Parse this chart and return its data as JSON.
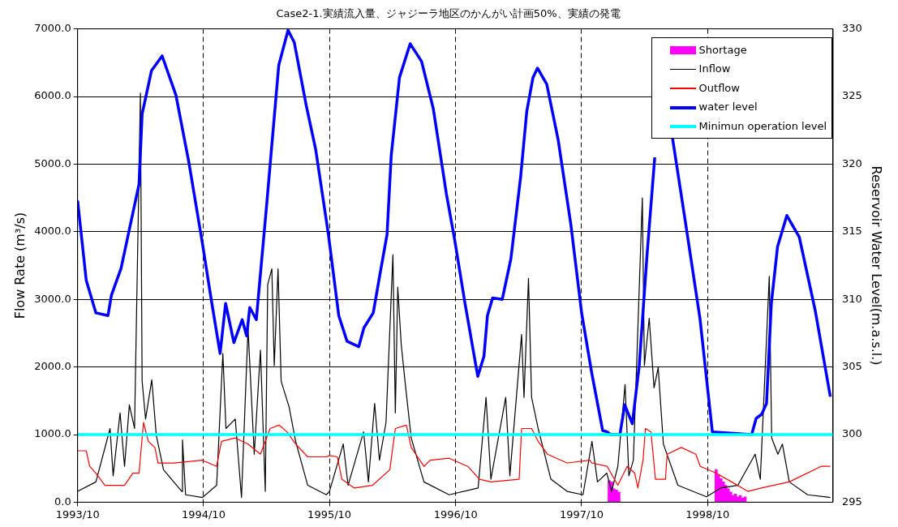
{
  "chart_data": {
    "type": "line",
    "title": "Case2-1.実績流入量、ジャジーラ地区のかんがい計画50%、実績の発電",
    "ylabel": "Flow Rate (m³/s)",
    "y2label": "Reservoir Water Level(m.a.s.l.)",
    "xlim": [
      "1993-10-01",
      "1999-09-30"
    ],
    "xticks": [
      {
        "value": "1993-10",
        "label": "1993/10"
      },
      {
        "value": "1994-10",
        "label": "1994/10"
      },
      {
        "value": "1995-10",
        "label": "1995/10"
      },
      {
        "value": "1996-10",
        "label": "1996/10"
      },
      {
        "value": "1997-10",
        "label": "1997/10"
      },
      {
        "value": "1998-10",
        "label": "1998/10"
      }
    ],
    "ylim": [
      0,
      7000
    ],
    "yticks": [
      {
        "value": 0,
        "label": "0.0"
      },
      {
        "value": 1000,
        "label": "1000.0"
      },
      {
        "value": 2000,
        "label": "2000.0"
      },
      {
        "value": 3000,
        "label": "3000.0"
      },
      {
        "value": 4000,
        "label": "4000.0"
      },
      {
        "value": 5000,
        "label": "5000.0"
      },
      {
        "value": 6000,
        "label": "6000.0"
      },
      {
        "value": 7000,
        "label": "7000.0"
      }
    ],
    "y2lim": [
      295,
      330
    ],
    "y2ticks": [
      295,
      300,
      305,
      310,
      315,
      320,
      325,
      330
    ],
    "grid": true,
    "legend": "top right",
    "series": [
      {
        "name": "Shortage",
        "type": "bar",
        "color": "#ff00ff",
        "x": [
          "1997-12-20",
          "1997-12-27",
          "1998-01-03",
          "1998-01-10",
          "1998-01-17",
          "1998-10-26",
          "1998-11-02",
          "1998-11-09",
          "1998-11-16",
          "1998-11-23",
          "1998-11-30",
          "1998-12-07",
          "1998-12-14",
          "1998-12-21",
          "1998-12-28",
          "1999-01-04",
          "1999-01-11",
          "1999-01-18"
        ],
        "values": [
          320,
          300,
          200,
          180,
          150,
          480,
          400,
          350,
          300,
          250,
          200,
          150,
          100,
          120,
          80,
          100,
          60,
          80
        ]
      },
      {
        "name": "Inflow",
        "color": "#000000",
        "x": [
          "1993-10-01",
          "1993-11-23",
          "1994-01-03",
          "1994-01-12",
          "1994-02-01",
          "1994-02-14",
          "1994-02-28",
          "1994-03-15",
          "1994-04-01",
          "1994-04-06",
          "1994-04-16",
          "1994-05-04",
          "1994-05-17",
          "1994-06-07",
          "1994-07-30",
          "1994-08-01",
          "1994-08-10",
          "1994-09-28",
          "1994-11-08",
          "1994-11-26",
          "1994-12-05",
          "1995-01-01",
          "1995-01-19",
          "1995-02-07",
          "1995-02-25",
          "1995-03-15",
          "1995-03-29",
          "1995-04-05",
          "1995-04-17",
          "1995-04-24",
          "1995-05-05",
          "1995-05-14",
          "1995-06-06",
          "1995-06-25",
          "1995-07-30",
          "1995-09-22",
          "1995-10-01",
          "1995-11-10",
          "1995-11-24",
          "1996-01-08",
          "1996-01-22",
          "1996-02-09",
          "1996-02-23",
          "1996-03-13",
          "1996-04-02",
          "1996-04-09",
          "1996-04-16",
          "1996-04-26",
          "1996-05-07",
          "1996-05-25",
          "1996-07-01",
          "1996-09-12",
          "1996-12-05",
          "1996-12-28",
          "1997-01-11",
          "1997-02-23",
          "1997-03-07",
          "1997-04-10",
          "1997-04-17",
          "1997-04-30",
          "1997-05-09",
          "1997-05-28",
          "1997-07-04",
          "1997-08-20",
          "1997-10-05",
          "1997-10-31",
          "1997-11-16",
          "1997-12-13",
          "1997-12-27",
          "1998-01-14",
          "1998-02-04",
          "1998-02-15",
          "1998-02-28",
          "1998-03-26",
          "1998-04-01",
          "1998-04-15",
          "1998-04-29",
          "1998-05-11",
          "1998-05-26",
          "1998-07-07",
          "1998-09-28",
          "1998-11-08",
          "1998-12-28",
          "1999-02-16",
          "1999-03-03",
          "1999-03-29",
          "1999-04-05",
          "1999-04-23",
          "1999-05-06",
          "1999-05-26",
          "1999-07-18",
          "1999-09-22"
        ],
        "values": [
          160,
          300,
          1090,
          390,
          1320,
          530,
          1440,
          1090,
          6050,
          1790,
          1230,
          1810,
          990,
          480,
          160,
          920,
          110,
          70,
          250,
          2200,
          1090,
          1230,
          70,
          2570,
          710,
          2250,
          160,
          3220,
          3450,
          2020,
          3450,
          1790,
          1410,
          900,
          250,
          110,
          160,
          860,
          250,
          1040,
          300,
          1460,
          620,
          1180,
          3660,
          1320,
          3180,
          2340,
          1790,
          950,
          300,
          110,
          210,
          1550,
          340,
          1550,
          390,
          2480,
          1550,
          3310,
          1550,
          1090,
          340,
          160,
          110,
          900,
          300,
          430,
          160,
          530,
          1740,
          390,
          620,
          4500,
          2020,
          2720,
          1690,
          1990,
          860,
          250,
          80,
          210,
          250,
          710,
          340,
          3340,
          950,
          710,
          860,
          300,
          110,
          70
        ]
      },
      {
        "name": "Outflow",
        "color": "#ff0000",
        "x": [
          "1993-10-01",
          "1993-10-26",
          "1993-11-05",
          "1993-11-23",
          "1993-12-19",
          "1994-02-14",
          "1994-03-10",
          "1994-03-28",
          "1994-04-10",
          "1994-04-24",
          "1994-05-13",
          "1994-05-22",
          "1994-07-06",
          "1994-09-27",
          "1994-11-08",
          "1994-11-22",
          "1995-01-01",
          "1995-02-07",
          "1995-03-15",
          "1995-04-12",
          "1995-05-08",
          "1995-05-31",
          "1995-06-25",
          "1995-07-30",
          "1995-09-22",
          "1995-10-01",
          "1995-10-24",
          "1995-11-06",
          "1995-12-12",
          "1996-02-03",
          "1996-03-24",
          "1996-04-09",
          "1996-05-11",
          "1996-05-25",
          "1996-07-01",
          "1996-07-19",
          "1996-09-12",
          "1996-11-05",
          "1996-12-09",
          "1997-01-11",
          "1997-04-03",
          "1997-04-10",
          "1997-05-09",
          "1997-05-28",
          "1997-06-24",
          "1997-08-20",
          "1997-10-25",
          "1997-10-30",
          "1997-12-14",
          "1998-01-14",
          "1998-02-10",
          "1998-03-04",
          "1998-03-13",
          "1998-03-28",
          "1998-04-04",
          "1998-04-20",
          "1998-05-03",
          "1998-06-01",
          "1998-06-06",
          "1998-07-17",
          "1998-08-28",
          "1998-09-10",
          "1998-10-26",
          "1998-12-10",
          "1999-01-26",
          "1999-03-06",
          "1999-05-26",
          "1999-08-26",
          "1999-09-22"
        ],
        "values": [
          760,
          760,
          530,
          430,
          250,
          250,
          430,
          430,
          1180,
          900,
          810,
          580,
          580,
          620,
          530,
          900,
          950,
          860,
          710,
          1090,
          1140,
          1040,
          860,
          670,
          670,
          690,
          670,
          340,
          210,
          250,
          480,
          1090,
          1140,
          810,
          530,
          620,
          650,
          530,
          340,
          300,
          340,
          1090,
          1090,
          900,
          710,
          580,
          620,
          580,
          530,
          250,
          530,
          430,
          210,
          620,
          1090,
          1040,
          340,
          340,
          710,
          810,
          710,
          530,
          430,
          300,
          160,
          210,
          300,
          530,
          530
        ]
      },
      {
        "name": "water level",
        "color": "#0000ff",
        "axis": "y2",
        "x": [
          "1993-10-01",
          "1993-10-26",
          "1993-11-23",
          "1993-12-28",
          "1994-01-07",
          "1994-02-04",
          "1994-03-01",
          "1994-03-28",
          "1994-04-06",
          "1994-05-03",
          "1994-06-03",
          "1994-07-13",
          "1994-08-19",
          "1994-09-28",
          "1994-10-22",
          "1994-11-18",
          "1994-12-04",
          "1994-12-28",
          "1995-01-21",
          "1995-02-03",
          "1995-02-12",
          "1995-03-03",
          "1995-04-01",
          "1995-05-07",
          "1995-06-03",
          "1995-06-21",
          "1995-07-26",
          "1995-08-22",
          "1995-09-28",
          "1995-10-28",
          "1995-11-21",
          "1995-12-25",
          "1996-01-09",
          "1996-02-05",
          "1996-02-24",
          "1996-03-16",
          "1996-03-28",
          "1996-04-21",
          "1996-05-22",
          "1996-06-24",
          "1996-07-28",
          "1996-09-04",
          "1996-09-28",
          "1996-10-28",
          "1996-12-04",
          "1996-12-22",
          "1997-01-01",
          "1997-01-16",
          "1997-02-13",
          "1997-03-10",
          "1997-04-07",
          "1997-04-25",
          "1997-05-13",
          "1997-05-26",
          "1997-06-22",
          "1997-07-25",
          "1997-08-31",
          "1997-10-01",
          "1997-10-30",
          "1997-12-01",
          "1997-12-14",
          "1997-12-24",
          "1998-01-20",
          "1998-02-03",
          "1998-02-25",
          "1998-03-17",
          "1998-04-09",
          "1998-05-01",
          "1998-05-28",
          "1998-06-21",
          "1998-07-26",
          "1998-09-09",
          "1998-10-15",
          "1999-02-06",
          "1999-02-19",
          "1999-03-07",
          "1999-03-21",
          "1999-04-04",
          "1999-04-22",
          "1999-05-19",
          "1999-06-24",
          "1999-08-09",
          "1999-09-22"
        ],
        "values": [
          317.3,
          311.4,
          309.0,
          308.8,
          310.3,
          312.3,
          315.3,
          318.5,
          323.7,
          326.9,
          328.0,
          325.1,
          320.2,
          314.1,
          310.2,
          306.0,
          309.7,
          306.8,
          308.5,
          307.3,
          309.4,
          308.5,
          316.7,
          327.3,
          329.9,
          329.0,
          324.3,
          321.1,
          314.8,
          308.8,
          306.9,
          306.5,
          307.9,
          309.0,
          311.8,
          314.8,
          320.6,
          326.4,
          328.9,
          327.6,
          324.1,
          317.8,
          314.4,
          309.7,
          304.3,
          305.8,
          308.8,
          310.1,
          310.0,
          313.0,
          319.0,
          323.9,
          326.4,
          327.1,
          325.9,
          321.8,
          315.5,
          309.0,
          304.6,
          300.3,
          300.2,
          300,
          300,
          302.2,
          300.8,
          305.1,
          313.4,
          320.5,
          null,
          322.0,
          316.2,
          308.6,
          300.2,
          300,
          301.2,
          301.5,
          302.3,
          309.7,
          313.9,
          316.2,
          314.6,
          309.2,
          302.8
        ]
      },
      {
        "name": "Minimun operation level",
        "color": "#00ffff",
        "axis": "y2",
        "x": [
          "1993-10-01",
          "1999-09-30"
        ],
        "values": [
          300,
          300
        ]
      }
    ]
  }
}
